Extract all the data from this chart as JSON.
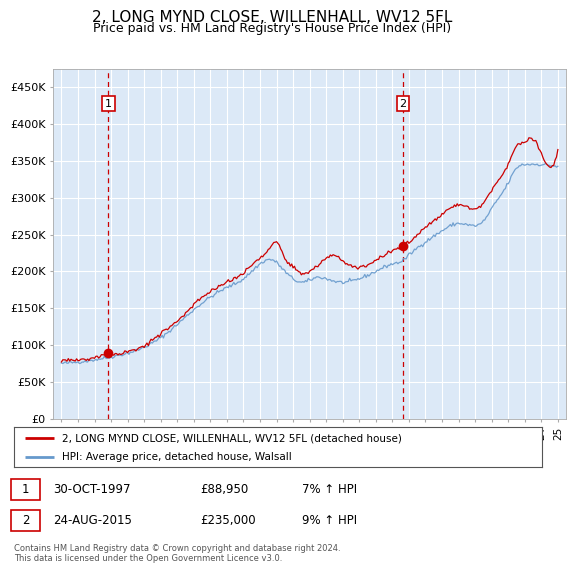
{
  "title": "2, LONG MYND CLOSE, WILLENHALL, WV12 5FL",
  "subtitle": "Price paid vs. HM Land Registry's House Price Index (HPI)",
  "title_fontsize": 11,
  "subtitle_fontsize": 9,
  "plot_bg_color": "#dce9f7",
  "ylim": [
    0,
    475000
  ],
  "yticks": [
    0,
    50000,
    100000,
    150000,
    200000,
    250000,
    300000,
    350000,
    400000,
    450000
  ],
  "ytick_labels": [
    "£0",
    "£50K",
    "£100K",
    "£150K",
    "£200K",
    "£250K",
    "£300K",
    "£350K",
    "£400K",
    "£450K"
  ],
  "sale1_date_num": 1997.83,
  "sale1_price": 88950,
  "sale2_date_num": 2015.65,
  "sale2_price": 235000,
  "sale1_info": "30-OCT-1997",
  "sale1_price_str": "£88,950",
  "sale1_hpi": "7% ↑ HPI",
  "sale2_info": "24-AUG-2015",
  "sale2_price_str": "£235,000",
  "sale2_hpi": "9% ↑ HPI",
  "legend_line1": "2, LONG MYND CLOSE, WILLENHALL, WV12 5FL (detached house)",
  "legend_line2": "HPI: Average price, detached house, Walsall",
  "footer": "Contains HM Land Registry data © Crown copyright and database right 2024.\nThis data is licensed under the Open Government Licence v3.0.",
  "red_color": "#cc0000",
  "blue_color": "#6699cc",
  "xtick_start": 1995,
  "xtick_end": 2025
}
